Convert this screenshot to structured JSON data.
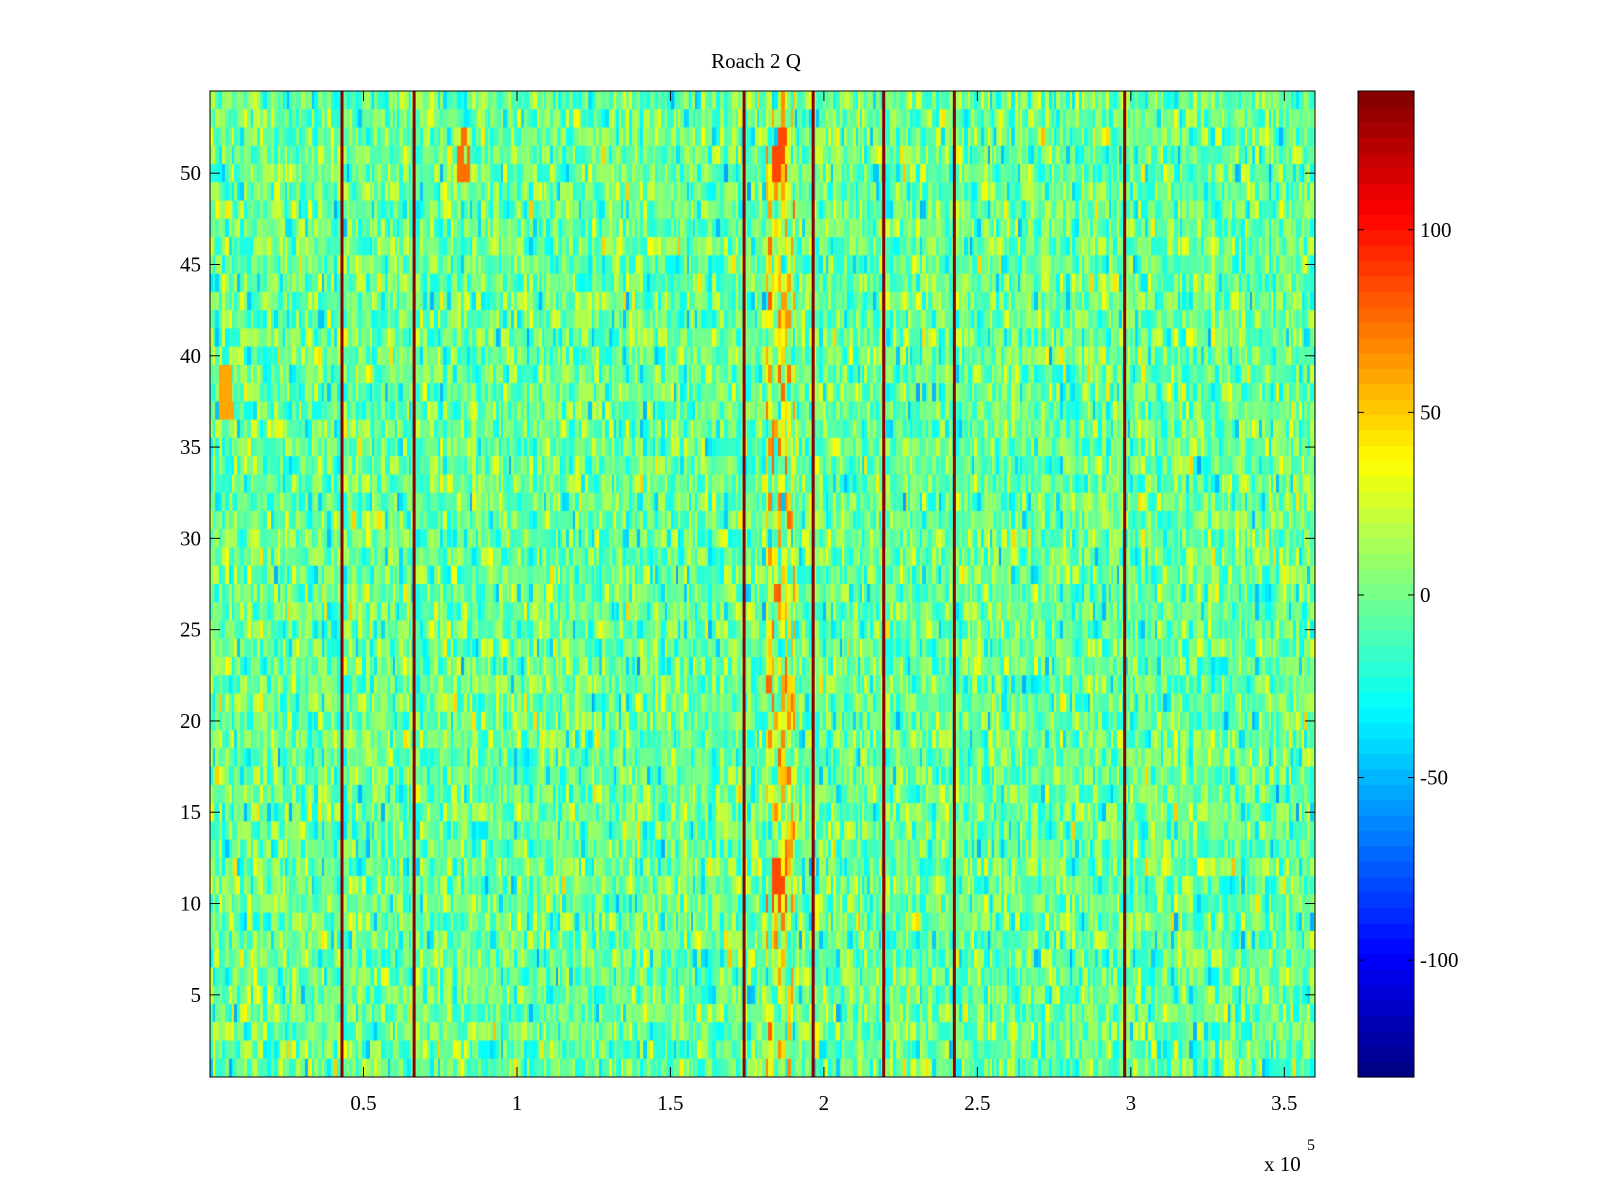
{
  "chart_data": {
    "type": "heatmap",
    "title": "Roach 2 Q",
    "xlabel": "",
    "ylabel": "",
    "x_exponent_label": "x 10",
    "x_exponent_power": "5",
    "xlim": [
      0,
      3.6
    ],
    "ylim": [
      0.5,
      54.5
    ],
    "rows": 54,
    "x_ticks": [
      {
        "value": 0.5,
        "label": "0.5"
      },
      {
        "value": 1,
        "label": "1"
      },
      {
        "value": 1.5,
        "label": "1.5"
      },
      {
        "value": 2,
        "label": "2"
      },
      {
        "value": 2.5,
        "label": "2.5"
      },
      {
        "value": 3,
        "label": "3"
      },
      {
        "value": 3.5,
        "label": "3.5"
      }
    ],
    "y_ticks": [
      {
        "value": 5,
        "label": "5"
      },
      {
        "value": 10,
        "label": "10"
      },
      {
        "value": 15,
        "label": "15"
      },
      {
        "value": 20,
        "label": "20"
      },
      {
        "value": 25,
        "label": "25"
      },
      {
        "value": 30,
        "label": "30"
      },
      {
        "value": 35,
        "label": "35"
      },
      {
        "value": 40,
        "label": "40"
      },
      {
        "value": 45,
        "label": "45"
      },
      {
        "value": 50,
        "label": "50"
      }
    ],
    "colorbar": {
      "colormap": "jet",
      "range": [
        -132,
        138
      ],
      "ticks": [
        {
          "value": -100,
          "label": "-100"
        },
        {
          "value": -50,
          "label": "-50"
        },
        {
          "value": 0,
          "label": "0"
        },
        {
          "value": 50,
          "label": "50"
        },
        {
          "value": 100,
          "label": "100"
        }
      ]
    },
    "background_value_range": [
      -45,
      40
    ],
    "dark_vertical_lines_x": [
      0.43,
      0.665,
      1.74,
      1.965,
      2.195,
      2.425,
      2.98
    ],
    "dark_vertical_line_value": 135,
    "hot_band": {
      "x_range": [
        1.8,
        1.9
      ],
      "value_range": [
        20,
        80
      ]
    },
    "hot_spots": [
      {
        "x": 0.82,
        "y": 51,
        "value": 75
      },
      {
        "x": 1.85,
        "y": 51,
        "value": 85
      },
      {
        "x": 1.85,
        "y": 11,
        "value": 85
      },
      {
        "x": 0.05,
        "y": 38,
        "value": 60
      }
    ]
  }
}
